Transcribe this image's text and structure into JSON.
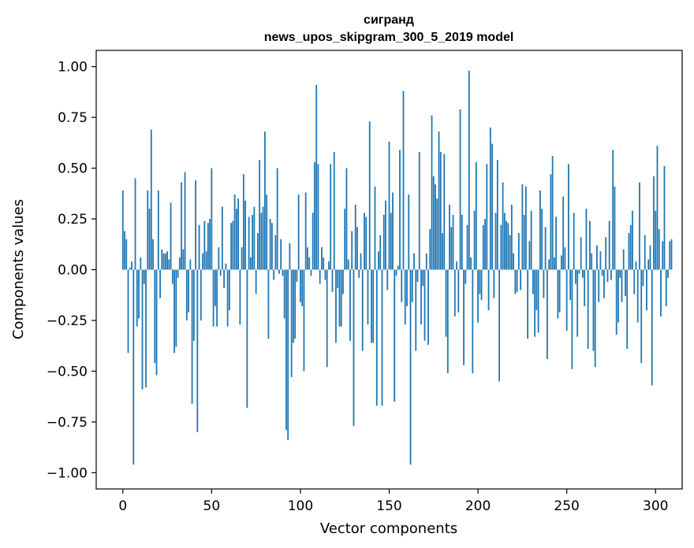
{
  "chart_data": {
    "type": "bar",
    "title": "сигранд",
    "subtitle": "news_upos_skipgram_300_5_2019 model",
    "xlabel": "Vector components",
    "ylabel": "Components values",
    "xlim": [
      -15,
      315
    ],
    "ylim": [
      -1.08,
      1.08
    ],
    "xticks": [
      0,
      50,
      100,
      150,
      200,
      250,
      300
    ],
    "yticks": [
      1.0,
      0.75,
      0.5,
      0.25,
      0.0,
      -0.25,
      -0.5,
      -0.75,
      -1.0
    ],
    "xtick_labels": [
      "0",
      "50",
      "100",
      "150",
      "200",
      "250",
      "300"
    ],
    "ytick_labels": [
      "1.00",
      "0.75",
      "0.50",
      "0.25",
      "0.00",
      "−0.25",
      "−0.50",
      "−0.75",
      "−1.00"
    ],
    "bar_color": "#1f77b4",
    "values": [
      0.39,
      0.19,
      0.15,
      -0.41,
      0.01,
      0.04,
      -0.96,
      0.45,
      -0.28,
      -0.24,
      0.06,
      -0.59,
      -0.07,
      -0.58,
      0.39,
      0.3,
      0.69,
      0.15,
      -0.46,
      -0.52,
      0.39,
      -0.14,
      0.1,
      0.08,
      0.08,
      0.09,
      0.05,
      0.33,
      -0.07,
      -0.41,
      -0.38,
      -0.04,
      0.06,
      0.43,
      0.1,
      0.48,
      -0.25,
      -0.21,
      0.05,
      -0.66,
      -0.35,
      0.44,
      -0.8,
      0.22,
      -0.25,
      0.08,
      0.24,
      0.09,
      0.23,
      0.25,
      0.5,
      -0.28,
      -0.18,
      -0.28,
      0.11,
      -0.03,
      0.31,
      -0.09,
      0.03,
      -0.28,
      -0.2,
      0.23,
      0.24,
      0.37,
      0.3,
      0.35,
      -0.27,
      0.11,
      0.47,
      0.34,
      -0.68,
      0.26,
      0.06,
      0.27,
      0.31,
      -0.12,
      0.18,
      0.54,
      0.28,
      0.31,
      0.68,
      0.37,
      -0.34,
      0.25,
      0.23,
      -0.05,
      0.17,
      0.5,
      -0.02,
      0.15,
      -0.03,
      -0.24,
      -0.79,
      -0.84,
      0.13,
      -0.53,
      -0.36,
      -0.34,
      -0.06,
      0.37,
      -0.16,
      -0.18,
      -0.5,
      0.38,
      0.11,
      0.06,
      -0.03,
      0.28,
      0.53,
      0.91,
      0.52,
      -0.07,
      0.11,
      0.06,
      -0.05,
      -0.48,
      0.04,
      0.52,
      -0.11,
      0.58,
      -0.36,
      -0.09,
      -0.28,
      -0.28,
      -0.12,
      0.3,
      0.5,
      0.05,
      -0.35,
      0.19,
      -0.77,
      0.32,
      0.21,
      -0.04,
      0.08,
      -0.4,
      0.28,
      0.26,
      -0.27,
      0.73,
      -0.36,
      -0.36,
      0.41,
      -0.67,
      0.09,
      0.17,
      -0.67,
      0.27,
      0.34,
      -0.1,
      0.63,
      0.28,
      0.38,
      -0.65,
      -0.03,
      0.02,
      0.59,
      -0.16,
      0.88,
      -0.27,
      -0.18,
      0.37,
      -0.96,
      -0.16,
      0.08,
      -0.4,
      -0.06,
      0.58,
      -0.27,
      -0.08,
      -0.35,
      0.08,
      -0.37,
      0.2,
      0.76,
      0.46,
      0.42,
      0.35,
      0.68,
      0.58,
      0.18,
      0.57,
      -0.33,
      -0.51,
      0.32,
      0.21,
      0.27,
      -0.23,
      0.04,
      -0.21,
      0.79,
      0.27,
      -0.47,
      -0.07,
      0.22,
      0.98,
      0.06,
      -0.51,
      0.29,
      0.53,
      -0.26,
      -0.12,
      -0.15,
      0.22,
      0.25,
      0.52,
      -0.2,
      0.7,
      0.62,
      -0.14,
      0.28,
      0.54,
      -0.55,
      0.22,
      0.43,
      0.28,
      0.24,
      0.23,
      0.17,
      0.32,
      0.08,
      -0.12,
      -0.11,
      0.18,
      -0.1,
      0.42,
      0.27,
      0.41,
      -0.34,
      0.14,
      0.29,
      -0.12,
      -0.33,
      -0.2,
      -0.31,
      0.39,
      0.3,
      -0.14,
      0.21,
      -0.44,
      0.05,
      0.47,
      0.56,
      0.06,
      0.26,
      -0.24,
      -0.21,
      0.07,
      0.36,
      0.11,
      -0.3,
      0.52,
      -0.15,
      -0.49,
      0.28,
      -0.07,
      -0.33,
      -0.02,
      0.16,
      -0.04,
      -0.18,
      0.3,
      -0.39,
      0.24,
      0.08,
      -0.4,
      -0.48,
      0.12,
      -0.16,
      0.09,
      -0.03,
      -0.14,
      0.16,
      -0.06,
      0.24,
      -0.05,
      0.59,
      0.41,
      -0.32,
      -0.26,
      -0.04,
      -0.16,
      0.1,
      -0.13,
      -0.39,
      0.18,
      0.22,
      0.29,
      -0.12,
      0.04,
      -0.26,
      0.43,
      -0.46,
      -0.08,
      0.17,
      -0.2,
      0.05,
      0.12,
      -0.57,
      0.46,
      0.29,
      0.61,
      0.2,
      -0.23,
      0.14,
      0.51,
      -0.18,
      -0.04,
      0.14,
      0.15
    ]
  }
}
